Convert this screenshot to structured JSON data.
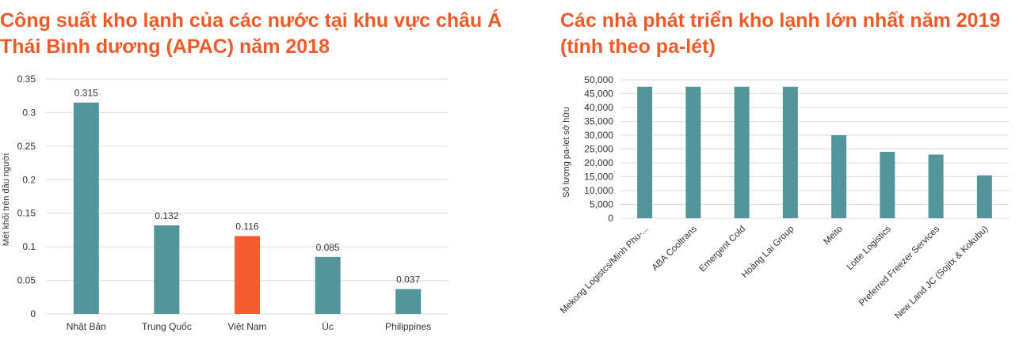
{
  "chart_data": [
    {
      "type": "bar",
      "title": "Công suất kho lạnh của các nước tại khu vực châu Á Thái Bình dương (APAC) năm 2018",
      "xlabel": "",
      "ylabel": "Mét khối trên đầu người",
      "ylim": [
        0,
        0.35
      ],
      "yticks": [
        "0",
        "0.05",
        "0.1",
        "0.15",
        "0.2",
        "0.25",
        "0.3",
        "0.35"
      ],
      "categories": [
        "Nhật Bản",
        "Trung Quốc",
        "Việt Nam",
        "Úc",
        "Philippines"
      ],
      "values": [
        0.315,
        0.132,
        0.116,
        0.085,
        0.037
      ],
      "data_labels": [
        "0.315",
        "0.132",
        "0.116",
        "0.085",
        "0.037"
      ],
      "colors": [
        "#54959c",
        "#54959c",
        "#f25c30",
        "#54959c",
        "#54959c"
      ],
      "grid": true
    },
    {
      "type": "bar",
      "title": "Các nhà phát triển kho lạnh lớn nhất năm 2019 (tính theo pa-lét)",
      "xlabel": "",
      "ylabel": "Số lượng pa-let sở hữu",
      "ylim": [
        0,
        50000
      ],
      "yticks": [
        "0",
        "5,000",
        "10,000",
        "15,000",
        "20,000",
        "25,000",
        "30,000",
        "35,000",
        "40,000",
        "45,000",
        "50,000"
      ],
      "categories": [
        "Mekong Logistcs/Minh Phu-...",
        "ABA Cooltrans",
        "Emergent Cold",
        "Hoàng Lai Group",
        "Meito",
        "Lotte Logistics",
        "Preferred Freezer Services",
        "New Land JC (Sojitx & Kokubu)"
      ],
      "values": [
        47500,
        47500,
        47500,
        47500,
        30000,
        24000,
        23000,
        15500
      ],
      "colors": [
        "#54959c"
      ],
      "grid": true
    }
  ]
}
